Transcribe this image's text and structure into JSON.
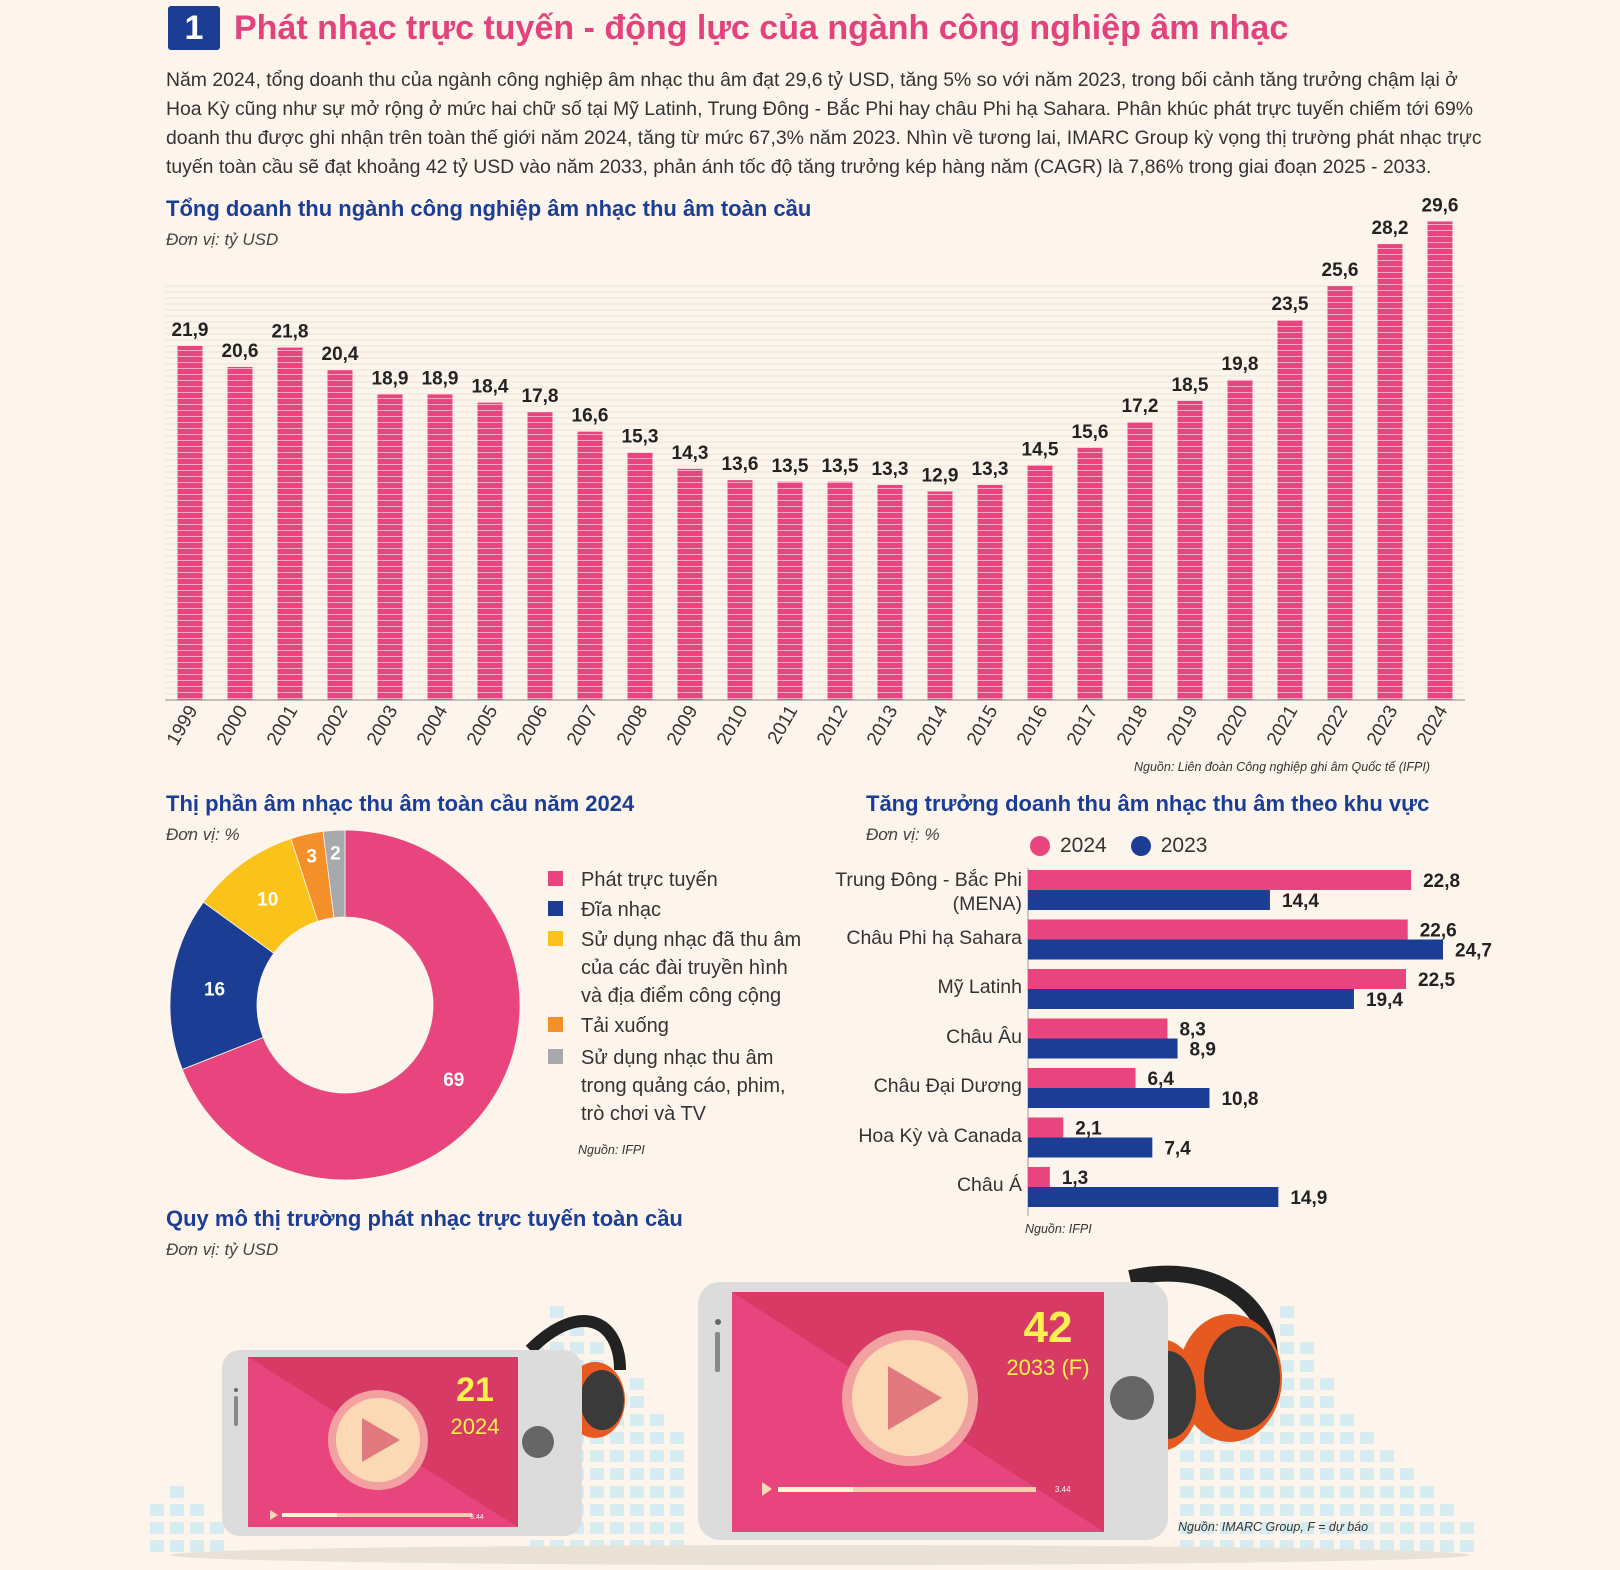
{
  "header": {
    "number": "1",
    "title": "Phát nhạc trực tuyến - động lực của ngành công nghiệp âm nhạc",
    "intro": "Năm 2024, tổng doanh thu của ngành công nghiệp âm nhạc thu âm đạt 29,6 tỷ USD, tăng 5% so với năm 2023, trong bối cảnh tăng trưởng chậm lại ở Hoa Kỳ cũng như sự mở rộng ở mức hai chữ số tại Mỹ Latinh, Trung Đông - Bắc Phi hay châu Phi hạ Sahara. Phân khúc phát trực tuyến chiếm tới 69% doanh thu được ghi nhận trên toàn thế giới năm 2024, tăng từ mức 67,3% năm 2023. Nhìn về tương lai, IMARC Group kỳ vọng thị trường phát nhạc trực tuyến toàn cầu sẽ đạt khoảng 42 tỷ USD vào năm 2033, phản ánh tốc độ tăng trưởng kép hàng năm (CAGR) là 7,86% trong giai đoạn 2025 - 2033."
  },
  "colors": {
    "pink": "#e8457e",
    "blue": "#1b3e94",
    "yellow": "#fbc21a",
    "orange": "#f3902a",
    "gray": "#a7a9ac",
    "title_pink": "#e3437d"
  },
  "chart_data": [
    {
      "type": "bar",
      "title": "Tổng doanh thu ngành công nghiệp âm nhạc thu âm toàn cầu",
      "unit": "Đơn vị: tỷ USD",
      "categories": [
        "1999",
        "2000",
        "2001",
        "2002",
        "2003",
        "2004",
        "2005",
        "2006",
        "2007",
        "2008",
        "2009",
        "2010",
        "2011",
        "2012",
        "2013",
        "2014",
        "2015",
        "2016",
        "2017",
        "2018",
        "2019",
        "2020",
        "2021",
        "2022",
        "2023",
        "2024"
      ],
      "values": [
        21.9,
        20.6,
        21.8,
        20.4,
        18.9,
        18.9,
        18.4,
        17.8,
        16.6,
        15.3,
        14.3,
        13.6,
        13.5,
        13.5,
        13.3,
        12.9,
        13.3,
        14.5,
        15.6,
        17.2,
        18.5,
        19.8,
        23.5,
        25.6,
        28.2,
        29.6
      ],
      "labels": [
        "21,9",
        "20,6",
        "21,8",
        "20,4",
        "18,9",
        "18,9",
        "18,4",
        "17,8",
        "16,6",
        "15,3",
        "14,3",
        "13,6",
        "13,5",
        "13,5",
        "13,3",
        "12,9",
        "13,3",
        "14,5",
        "15,6",
        "17,2",
        "18,5",
        "19,8",
        "23,5",
        "25,6",
        "28,2",
        "29,6"
      ],
      "ylim": [
        0,
        30
      ],
      "source": "Nguồn: Liên đoàn Công nghiệp ghi âm Quốc tế (IFPI)"
    },
    {
      "type": "pie",
      "title": "Thị phần âm nhạc thu âm toàn cầu năm 2024",
      "unit": "Đơn vị: %",
      "slices": [
        {
          "name": "Phát trực tuyến",
          "value": 69,
          "label": "69",
          "color": "#e8457e"
        },
        {
          "name": "Đĩa nhạc",
          "value": 16,
          "label": "16",
          "color": "#1b3e94"
        },
        {
          "name": "Sử dụng nhạc đã thu âm của các đài truyền hình và địa điểm công cộng",
          "value": 10,
          "label": "10",
          "color": "#fbc21a"
        },
        {
          "name": "Tải xuống",
          "value": 3,
          "label": "3",
          "color": "#f3902a"
        },
        {
          "name": "Sử dụng nhạc thu âm trong quảng cáo, phim, trò chơi và TV",
          "value": 2,
          "label": "2",
          "color": "#a7a9ac"
        }
      ],
      "source": "Nguồn: IFPI"
    },
    {
      "type": "bar",
      "orientation": "horizontal",
      "title": "Tăng trưởng doanh thu âm nhạc thu âm theo khu vực",
      "unit": "Đơn vị: %",
      "categories": [
        "Trung Đông - Bắc Phi (MENA)",
        "Châu Phi hạ Sahara",
        "Mỹ Latinh",
        "Châu Âu",
        "Châu Đại Dương",
        "Hoa Kỳ và Canada",
        "Châu Á"
      ],
      "series": [
        {
          "name": "2024",
          "color": "#e8457e",
          "values": [
            22.8,
            22.6,
            22.5,
            8.3,
            6.4,
            2.1,
            1.3
          ],
          "labels": [
            "22,8",
            "22,6",
            "22,5",
            "8,3",
            "6,4",
            "2,1",
            "1,3"
          ]
        },
        {
          "name": "2023",
          "color": "#1b3e94",
          "values": [
            14.4,
            24.7,
            19.4,
            8.9,
            10.8,
            7.4,
            14.9
          ],
          "labels": [
            "14,4",
            "24,7",
            "19,4",
            "8,9",
            "10,8",
            "7,4",
            "14,9"
          ]
        }
      ],
      "xlim": [
        0,
        24.7
      ],
      "source": "Nguồn: IFPI"
    }
  ],
  "market": {
    "title": "Quy mô thị trường phát nhạc trực tuyến toàn cầu",
    "unit": "Đơn vị: tỷ USD",
    "items": [
      {
        "value": "21",
        "year": "2024"
      },
      {
        "value": "42",
        "year": "2033 (F)"
      }
    ],
    "player_time": "3.44",
    "source": "Nguồn: IMARC Group, F = dự báo"
  }
}
